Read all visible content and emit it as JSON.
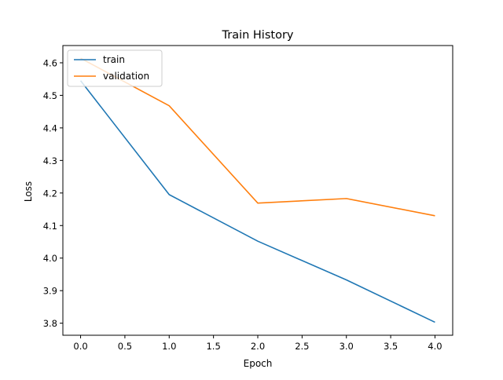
{
  "chart_data": {
    "type": "line",
    "title": "Train History",
    "xlabel": "Epoch",
    "ylabel": "Loss",
    "x": [
      0,
      1,
      2,
      3,
      4
    ],
    "series": [
      {
        "name": "train",
        "color": "#1f77b4",
        "values": [
          4.545,
          4.195,
          4.052,
          3.933,
          3.803
        ]
      },
      {
        "name": "validation",
        "color": "#ff7f0e",
        "values": [
          4.614,
          4.468,
          4.169,
          4.183,
          4.13
        ]
      }
    ],
    "xlim": [
      -0.2,
      4.2
    ],
    "ylim": [
      3.763,
      4.653
    ],
    "xticks": [
      0.0,
      0.5,
      1.0,
      1.5,
      2.0,
      2.5,
      3.0,
      3.5,
      4.0
    ],
    "xtick_labels": [
      "0.0",
      "0.5",
      "1.0",
      "1.5",
      "2.0",
      "2.5",
      "3.0",
      "3.5",
      "4.0"
    ],
    "yticks": [
      3.8,
      3.9,
      4.0,
      4.1,
      4.2,
      4.3,
      4.4,
      4.5,
      4.6
    ],
    "ytick_labels": [
      "3.8",
      "3.9",
      "4.0",
      "4.1",
      "4.2",
      "4.3",
      "4.4",
      "4.5",
      "4.6"
    ],
    "grid": false,
    "legend_position": "upper left"
  }
}
